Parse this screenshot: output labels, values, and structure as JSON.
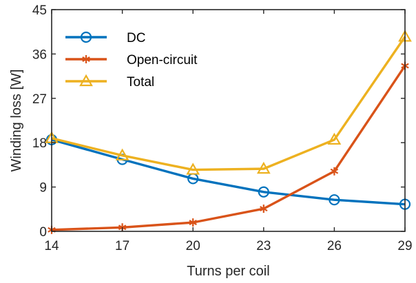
{
  "chart_data": {
    "type": "line",
    "title": "",
    "xlabel": "Turns per coil",
    "ylabel": "Winding loss [W]",
    "x": [
      14,
      17,
      20,
      23,
      26,
      29
    ],
    "x_ticks": [
      "14",
      "17",
      "20",
      "23",
      "26",
      "29"
    ],
    "xlim": [
      14,
      29
    ],
    "y_ticks": [
      "0",
      "9",
      "18",
      "27",
      "36",
      "45"
    ],
    "ylim": [
      0,
      45
    ],
    "grid": false,
    "legend_position": "top-left",
    "series": [
      {
        "name": "DC",
        "values": [
          18.6,
          14.6,
          10.7,
          8.0,
          6.4,
          5.5
        ],
        "color": "#0072BD",
        "marker": "circle"
      },
      {
        "name": "Open-circuit",
        "values": [
          0.3,
          0.8,
          1.8,
          4.6,
          12.2,
          33.6
        ],
        "color": "#D95319",
        "marker": "asterisk"
      },
      {
        "name": "Total",
        "values": [
          18.9,
          15.4,
          12.5,
          12.7,
          18.6,
          39.5
        ],
        "color": "#EDB120",
        "marker": "triangle"
      }
    ]
  }
}
